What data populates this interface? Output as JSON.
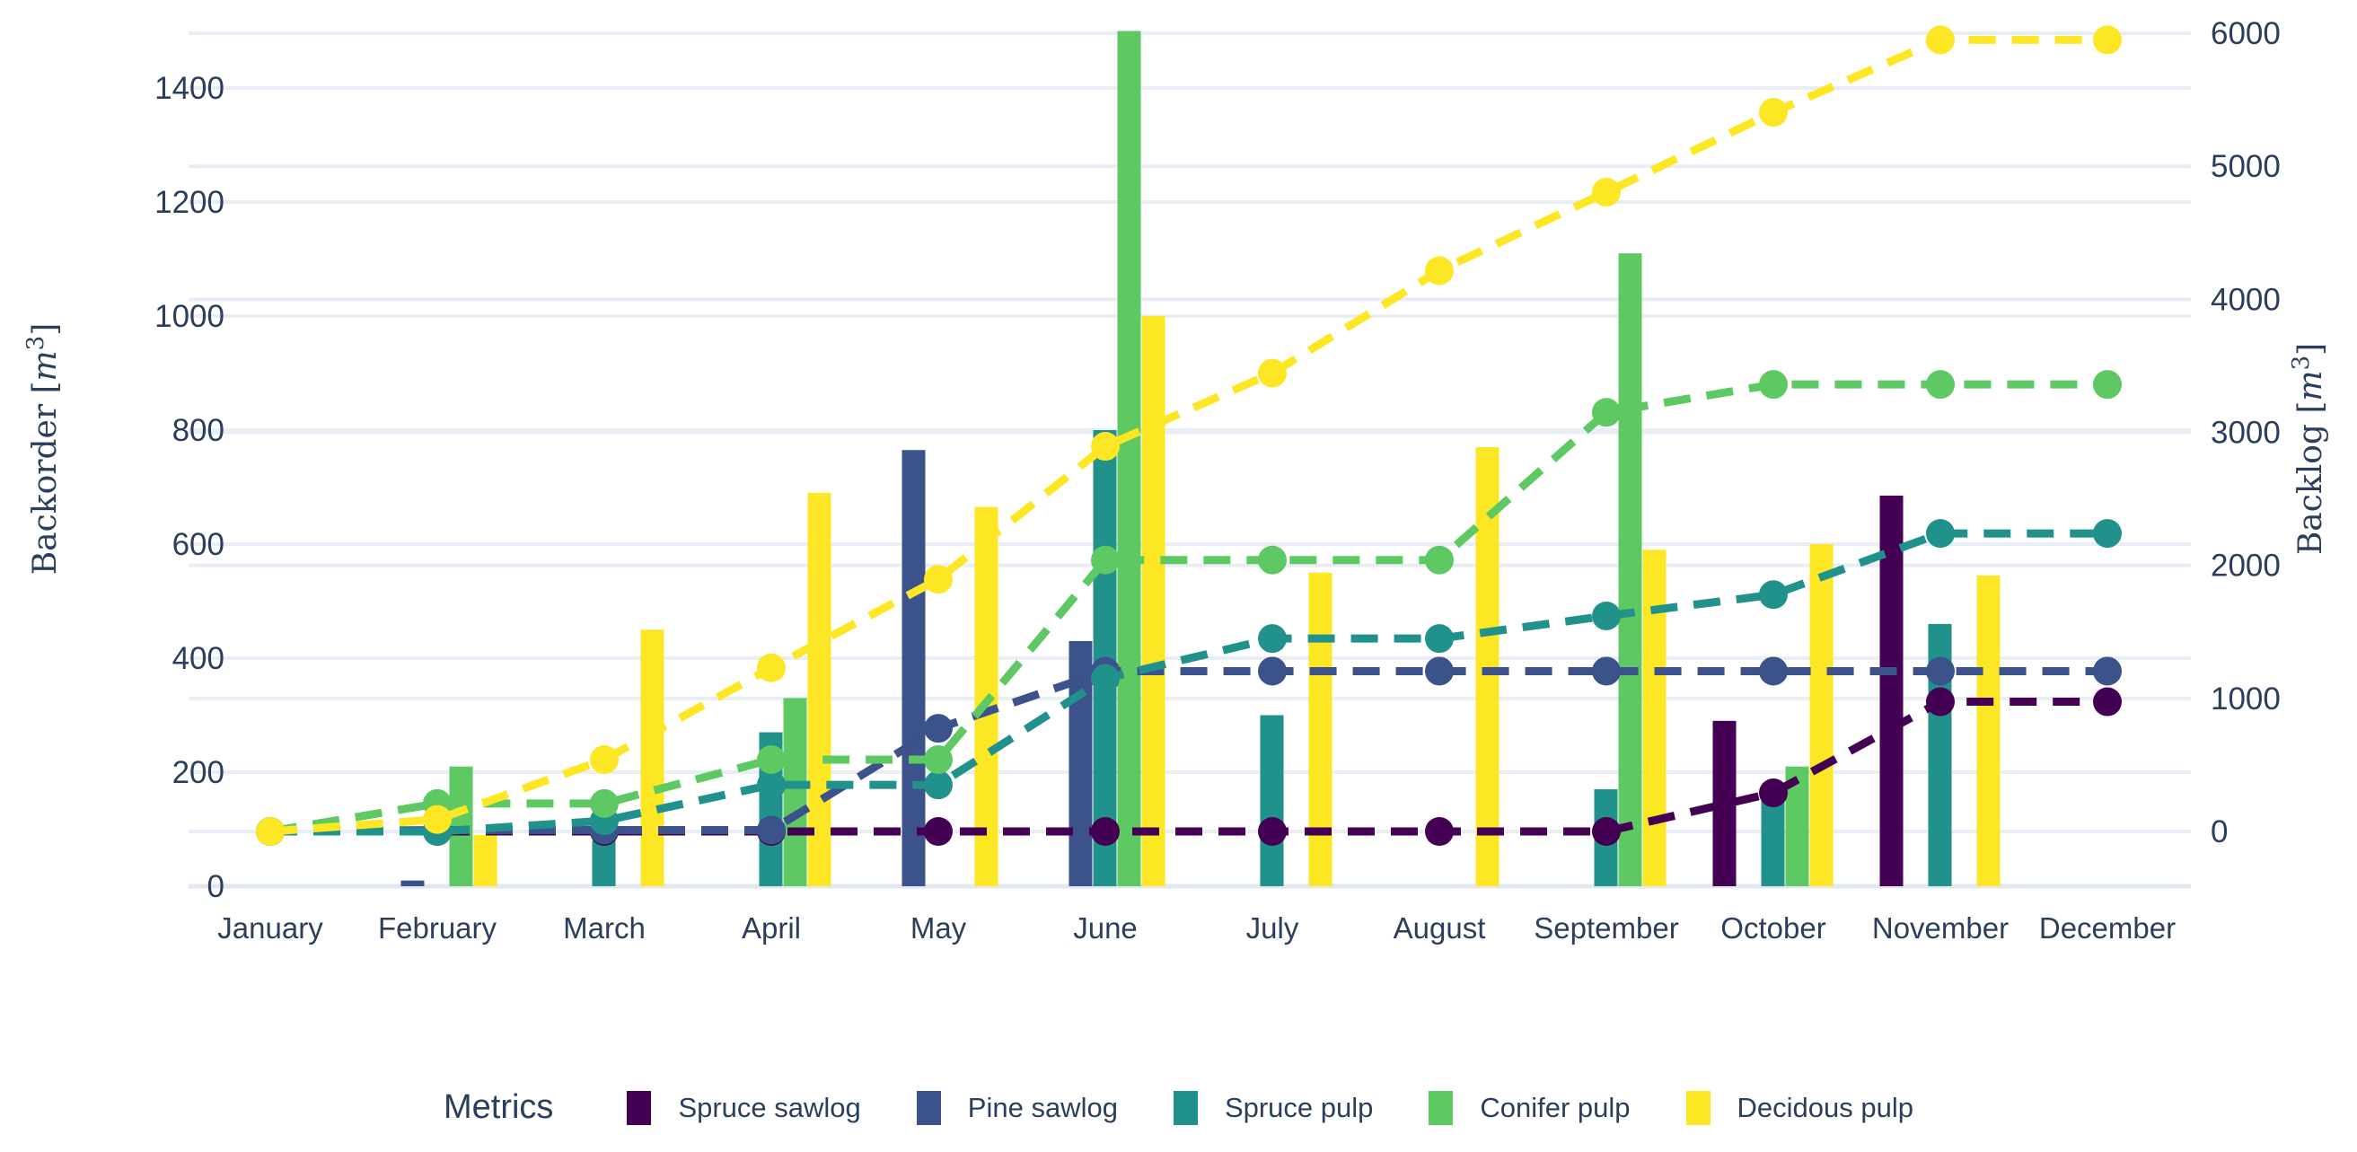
{
  "chart_data": {
    "type": "bar",
    "subtype": "grouped bars with dashed cumulative lines, dual y-axis",
    "categories": [
      "January",
      "February",
      "March",
      "April",
      "May",
      "June",
      "July",
      "August",
      "September",
      "October",
      "November",
      "December"
    ],
    "bar_series": [
      {
        "name": "Spruce sawlog",
        "color": "#440154",
        "values": [
          0,
          0,
          0,
          0,
          0,
          0,
          0,
          0,
          0,
          290,
          685,
          0
        ]
      },
      {
        "name": "Pine sawlog",
        "color": "#3b528b",
        "values": [
          0,
          10,
          0,
          0,
          765,
          430,
          0,
          0,
          0,
          0,
          0,
          0
        ]
      },
      {
        "name": "Spruce pulp",
        "color": "#21918c",
        "values": [
          0,
          0,
          80,
          270,
          0,
          800,
          300,
          0,
          170,
          160,
          460,
          0
        ]
      },
      {
        "name": "Conifer pulp",
        "color": "#5ec962",
        "values": [
          0,
          210,
          0,
          330,
          0,
          1500,
          0,
          0,
          1110,
          210,
          0,
          0
        ]
      },
      {
        "name": "Decidous pulp",
        "color": "#fde725",
        "values": [
          0,
          90,
          450,
          690,
          665,
          1000,
          550,
          770,
          590,
          600,
          545,
          0
        ]
      }
    ],
    "line_series": [
      {
        "name": "Spruce sawlog",
        "color": "#440154",
        "values": [
          0,
          0,
          0,
          0,
          0,
          0,
          0,
          0,
          0,
          290,
          975,
          975
        ]
      },
      {
        "name": "Pine sawlog",
        "color": "#3b528b",
        "values": [
          0,
          10,
          10,
          10,
          775,
          1205,
          1205,
          1205,
          1205,
          1205,
          1205,
          1205
        ]
      },
      {
        "name": "Spruce pulp",
        "color": "#21918c",
        "values": [
          0,
          0,
          80,
          350,
          350,
          1150,
          1450,
          1450,
          1620,
          1780,
          2240,
          2240
        ]
      },
      {
        "name": "Conifer pulp",
        "color": "#5ec962",
        "values": [
          0,
          210,
          210,
          540,
          540,
          2040,
          2040,
          2040,
          3150,
          3360,
          3360,
          3360
        ]
      },
      {
        "name": "Decidous pulp",
        "color": "#fde725",
        "values": [
          0,
          90,
          540,
          1230,
          1895,
          2895,
          3445,
          4215,
          4805,
          5405,
          5950,
          5950
        ]
      }
    ],
    "left_axis": {
      "title_full": "Backorder [m³]",
      "title_word": "Backorder",
      "unit_symbol": "m",
      "unit_exponent": "3",
      "ticks": [
        0,
        200,
        400,
        600,
        800,
        1000,
        1200,
        1400
      ],
      "range": [
        0,
        1522
      ]
    },
    "right_axis": {
      "title_full": "Backlog [m³]",
      "title_word": "Backlog",
      "unit_symbol": "m",
      "unit_exponent": "3",
      "ticks": [
        0,
        1000,
        2000,
        3000,
        4000,
        5000,
        6000
      ],
      "range": [
        -410,
        6110
      ]
    },
    "legend": {
      "title": "Metrics",
      "position": "bottom-center"
    },
    "line_style": {
      "dash": "dashed",
      "marker": "circle"
    },
    "grid": true
  },
  "colors": {
    "background": "#ffffff",
    "gridline": "#e8edf6",
    "zeroline": "#e2e8f2",
    "text": "#2b3f5c",
    "spruce_sawlog": "#440154",
    "pine_sawlog": "#3b528b",
    "spruce_pulp": "#21918c",
    "conifer_pulp": "#5ec962",
    "decidous_pulp": "#fde725"
  }
}
